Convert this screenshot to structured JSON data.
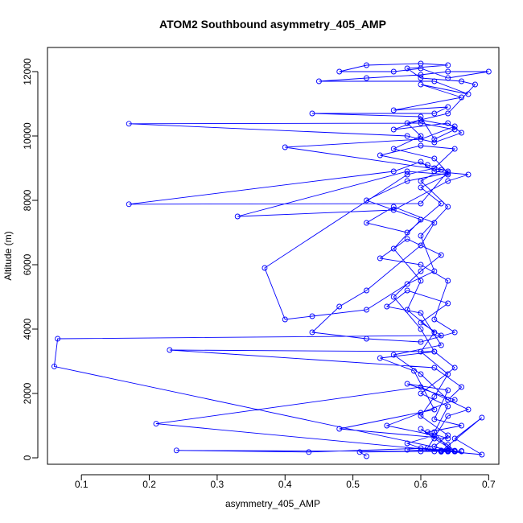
{
  "chart_data": {
    "type": "line",
    "title": "ATOM2 Southbound asymmetry_405_AMP",
    "xlabel": "asymmetry_405_AMP",
    "ylabel": "Altitude (m)",
    "xlim": [
      0.05,
      0.715
    ],
    "ylim": [
      -200,
      12750
    ],
    "xticks": [
      "0.1",
      "0.2",
      "0.3",
      "0.4",
      "0.5",
      "0.6",
      "0.7"
    ],
    "yticks": [
      "0",
      "2000",
      "4000",
      "6000",
      "8000",
      "10000",
      "12000"
    ],
    "grid": false,
    "series": [
      {
        "color": "#0000ff",
        "marker": "open-circle",
        "points": [
          [
            0.52,
            50
          ],
          [
            0.51,
            180
          ],
          [
            0.6,
            200
          ],
          [
            0.63,
            210
          ],
          [
            0.65,
            200
          ],
          [
            0.64,
            230
          ],
          [
            0.6,
            300
          ],
          [
            0.58,
            450
          ],
          [
            0.62,
            700
          ],
          [
            0.55,
            1000
          ],
          [
            0.6,
            1400
          ],
          [
            0.65,
            1800
          ],
          [
            0.58,
            2300
          ],
          [
            0.64,
            2100
          ],
          [
            0.62,
            1200
          ],
          [
            0.66,
            1000
          ],
          [
            0.61,
            800
          ],
          [
            0.64,
            600
          ],
          [
            0.48,
            900
          ],
          [
            0.62,
            1500
          ],
          [
            0.59,
            2700
          ],
          [
            0.54,
            3100
          ],
          [
            0.62,
            3300
          ],
          [
            0.65,
            2800
          ],
          [
            0.6,
            2000
          ],
          [
            0.64,
            1600
          ],
          [
            0.62,
            800
          ],
          [
            0.64,
            300
          ],
          [
            0.65,
            220
          ],
          [
            0.63,
            200
          ],
          [
            0.24,
            230
          ],
          [
            0.435,
            180
          ],
          [
            0.61,
            300
          ],
          [
            0.64,
            1300
          ],
          [
            0.67,
            1500
          ],
          [
            0.6,
            2200
          ],
          [
            0.21,
            1060
          ],
          [
            0.64,
            200
          ],
          [
            0.65,
            200
          ],
          [
            0.66,
            210
          ],
          [
            0.63,
            200
          ],
          [
            0.69,
            1250
          ],
          [
            0.65,
            600
          ],
          [
            0.69,
            100
          ],
          [
            0.64,
            200
          ],
          [
            0.58,
            250
          ],
          [
            0.64,
            200
          ],
          [
            0.65,
            210
          ],
          [
            0.64,
            400
          ],
          [
            0.6,
            900
          ],
          [
            0.62,
            600
          ],
          [
            0.65,
            200
          ],
          [
            0.06,
            2840
          ],
          [
            0.065,
            3700
          ],
          [
            0.63,
            3800
          ],
          [
            0.6,
            4200
          ],
          [
            0.64,
            4800
          ],
          [
            0.58,
            5200
          ],
          [
            0.55,
            4700
          ],
          [
            0.6,
            4500
          ],
          [
            0.63,
            3500
          ],
          [
            0.56,
            3200
          ],
          [
            0.6,
            2600
          ],
          [
            0.64,
            1800
          ],
          [
            0.66,
            2200
          ],
          [
            0.62,
            2800
          ],
          [
            0.23,
            3350
          ],
          [
            0.62,
            3300
          ],
          [
            0.6,
            4000
          ],
          [
            0.56,
            5000
          ],
          [
            0.6,
            5800
          ],
          [
            0.63,
            6300
          ],
          [
            0.58,
            6800
          ],
          [
            0.54,
            6200
          ],
          [
            0.6,
            6000
          ],
          [
            0.64,
            5500
          ],
          [
            0.62,
            4300
          ],
          [
            0.65,
            3900
          ],
          [
            0.6,
            3600
          ],
          [
            0.52,
            3700
          ],
          [
            0.44,
            3900
          ],
          [
            0.48,
            4700
          ],
          [
            0.52,
            5200
          ],
          [
            0.6,
            6600
          ],
          [
            0.62,
            7300
          ],
          [
            0.56,
            7800
          ],
          [
            0.52,
            7300
          ],
          [
            0.58,
            7000
          ],
          [
            0.63,
            7900
          ],
          [
            0.6,
            8400
          ],
          [
            0.64,
            8800
          ],
          [
            0.58,
            8900
          ],
          [
            0.33,
            7500
          ],
          [
            0.56,
            7700
          ],
          [
            0.64,
            8600
          ],
          [
            0.67,
            8800
          ],
          [
            0.62,
            8900
          ],
          [
            0.6,
            9200
          ],
          [
            0.56,
            8900
          ],
          [
            0.17,
            7880
          ],
          [
            0.6,
            7900
          ],
          [
            0.64,
            8900
          ],
          [
            0.61,
            9100
          ],
          [
            0.54,
            9400
          ],
          [
            0.6,
            9700
          ],
          [
            0.65,
            9600
          ],
          [
            0.62,
            9000
          ],
          [
            0.58,
            8800
          ],
          [
            0.37,
            5900
          ],
          [
            0.4,
            4300
          ],
          [
            0.44,
            4400
          ],
          [
            0.52,
            4600
          ],
          [
            0.58,
            5400
          ],
          [
            0.62,
            5800
          ],
          [
            0.6,
            6900
          ],
          [
            0.64,
            7800
          ],
          [
            0.6,
            8600
          ],
          [
            0.63,
            8950
          ],
          [
            0.4,
            9650
          ],
          [
            0.6,
            9900
          ],
          [
            0.65,
            10300
          ],
          [
            0.6,
            10500
          ],
          [
            0.56,
            10200
          ],
          [
            0.64,
            10400
          ],
          [
            0.66,
            10100
          ],
          [
            0.62,
            9800
          ],
          [
            0.58,
            10000
          ],
          [
            0.17,
            10380
          ],
          [
            0.6,
            10400
          ],
          [
            0.65,
            10200
          ],
          [
            0.62,
            9900
          ],
          [
            0.6,
            10600
          ],
          [
            0.44,
            10700
          ],
          [
            0.62,
            10700
          ],
          [
            0.64,
            10900
          ],
          [
            0.56,
            10800
          ],
          [
            0.66,
            11200
          ],
          [
            0.6,
            11600
          ],
          [
            0.67,
            11300
          ],
          [
            0.62,
            11700
          ],
          [
            0.45,
            11700
          ],
          [
            0.52,
            11800
          ],
          [
            0.6,
            11900
          ],
          [
            0.64,
            12000
          ],
          [
            0.7,
            12000
          ],
          [
            0.64,
            11800
          ],
          [
            0.6,
            12100
          ],
          [
            0.56,
            12000
          ],
          [
            0.48,
            12000
          ],
          [
            0.52,
            12200
          ],
          [
            0.6,
            12250
          ],
          [
            0.64,
            12200
          ],
          [
            0.58,
            12100
          ],
          [
            0.6,
            11800
          ],
          [
            0.66,
            11700
          ],
          [
            0.68,
            11600
          ],
          [
            0.64,
            10700
          ],
          [
            0.58,
            10400
          ],
          [
            0.6,
            10000
          ],
          [
            0.56,
            9600
          ],
          [
            0.62,
            9300
          ],
          [
            0.64,
            8850
          ],
          [
            0.58,
            8600
          ],
          [
            0.52,
            8000
          ],
          [
            0.6,
            7400
          ],
          [
            0.56,
            6500
          ],
          [
            0.6,
            5500
          ],
          [
            0.58,
            4600
          ],
          [
            0.62,
            3900
          ],
          [
            0.6,
            3300
          ],
          [
            0.64,
            2600
          ],
          [
            0.62,
            1900
          ],
          [
            0.6,
            1300
          ],
          [
            0.64,
            700
          ],
          [
            0.62,
            350
          ],
          [
            0.64,
            220
          ],
          [
            0.65,
            200
          ],
          [
            0.66,
            210
          ],
          [
            0.64,
            200
          ],
          [
            0.63,
            230
          ],
          [
            0.65,
            200
          ],
          [
            0.63,
            190
          ],
          [
            0.64,
            210
          ],
          [
            0.66,
            200
          ],
          [
            0.64,
            200
          ],
          [
            0.62,
            200
          ],
          [
            0.65,
            220
          ],
          [
            0.64,
            200
          ]
        ]
      }
    ]
  }
}
